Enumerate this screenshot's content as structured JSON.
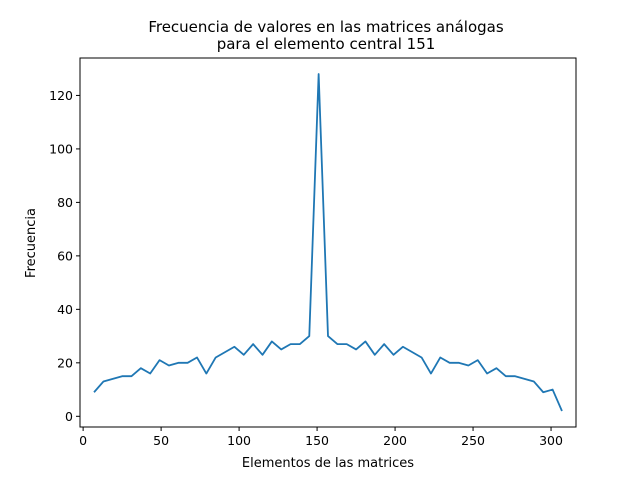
{
  "chart_data": {
    "type": "line",
    "title_lines": [
      "Frecuencia de valores en las matrices análogas",
      "para el elemento central 151"
    ],
    "xlabel": "Elementos de las matrices",
    "ylabel": "Frecuencia",
    "xlim": [
      -2,
      316
    ],
    "ylim": [
      -4,
      134
    ],
    "xticks": [
      0,
      50,
      100,
      150,
      200,
      250,
      300
    ],
    "yticks": [
      0,
      20,
      40,
      60,
      80,
      100,
      120
    ],
    "grid": false,
    "line_color": "#1f77b4",
    "series": [
      {
        "x": [
          7,
          13,
          19,
          25,
          31,
          37,
          43,
          49,
          55,
          61,
          67,
          73,
          79,
          85,
          91,
          97,
          103,
          109,
          115,
          121,
          127,
          133,
          139,
          145,
          151,
          157,
          163,
          169,
          175,
          181,
          187,
          193,
          199,
          205,
          211,
          217,
          223,
          229,
          235,
          241,
          247,
          253,
          259,
          265,
          271,
          277,
          283,
          289,
          295,
          301,
          307
        ],
        "values": [
          9,
          13,
          14,
          15,
          15,
          18,
          16,
          21,
          19,
          20,
          20,
          22,
          16,
          22,
          24,
          26,
          23,
          27,
          23,
          28,
          25,
          27,
          27,
          30,
          128,
          30,
          27,
          27,
          25,
          28,
          23,
          27,
          23,
          26,
          24,
          22,
          16,
          22,
          20,
          20,
          19,
          21,
          16,
          18,
          15,
          15,
          14,
          13,
          9,
          10,
          2
        ]
      }
    ]
  }
}
